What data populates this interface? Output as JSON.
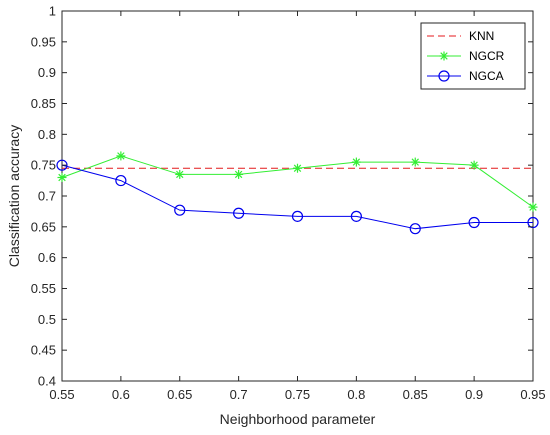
{
  "chart_data": {
    "type": "line",
    "xlabel": "Neighborhood parameter",
    "ylabel": "Classification accuracy",
    "xlim": [
      0.55,
      0.95
    ],
    "ylim": [
      0.4,
      1
    ],
    "x": [
      0.55,
      0.6,
      0.65,
      0.7,
      0.75,
      0.8,
      0.85,
      0.9,
      0.95
    ],
    "xticks": [
      "0.55",
      "0.6",
      "0.65",
      "0.7",
      "0.75",
      "0.8",
      "0.85",
      "0.9",
      "0.95"
    ],
    "yticks": [
      "0.4",
      "0.45",
      "0.5",
      "0.55",
      "0.6",
      "0.65",
      "0.7",
      "0.75",
      "0.8",
      "0.85",
      "0.9",
      "0.95",
      "1"
    ],
    "grid": false,
    "legend_position": "top-right",
    "series": [
      {
        "name": "KNN",
        "color": "#e41a1c",
        "style": "dashed",
        "marker": "none",
        "values": [
          0.745,
          0.745,
          0.745,
          0.745,
          0.745,
          0.745,
          0.745,
          0.745,
          0.745
        ]
      },
      {
        "name": "NGCR",
        "color": "#33ee33",
        "style": "solid",
        "marker": "asterisk",
        "values": [
          0.73,
          0.765,
          0.735,
          0.735,
          0.745,
          0.755,
          0.755,
          0.75,
          0.682
        ]
      },
      {
        "name": "NGCA",
        "color": "#0000ee",
        "style": "solid",
        "marker": "circle",
        "values": [
          0.75,
          0.725,
          0.677,
          0.672,
          0.667,
          0.667,
          0.647,
          0.657,
          0.657
        ]
      }
    ]
  }
}
